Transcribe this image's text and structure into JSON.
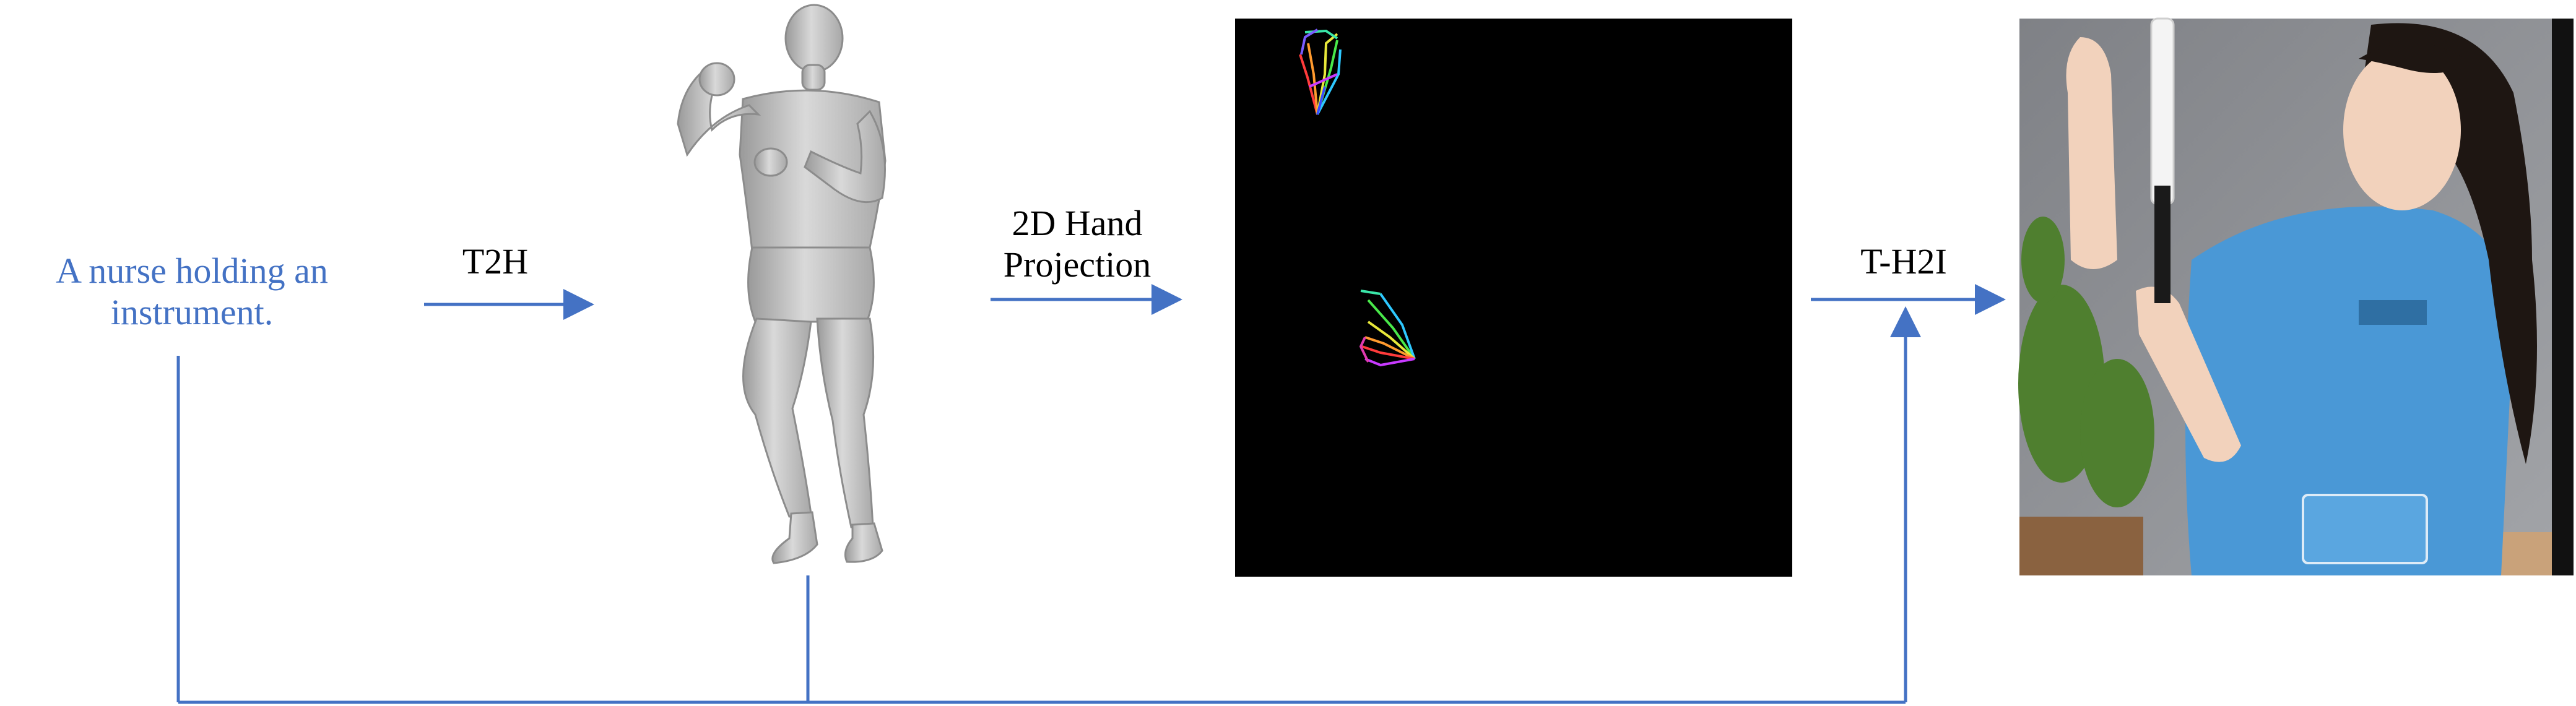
{
  "prompt": {
    "line1": "A nurse holding an",
    "line2": "instrument."
  },
  "steps": {
    "t2h": "T2H",
    "projection_line1": "2D Hand",
    "projection_line2": "Projection",
    "th2i": "T-H2I"
  },
  "colors": {
    "accent": "#4472C4",
    "text": "#000000",
    "panel_black": "#000000",
    "mesh": "#BDBDBD",
    "scrub_blue": "#4A98D6",
    "wall_gray": "#8E9095"
  },
  "nodes": {
    "human_mesh": "3d-hand-body-mesh",
    "hand_keypoints": "2d-hand-keypoint-map",
    "result_image": "generated-nurse-image"
  }
}
